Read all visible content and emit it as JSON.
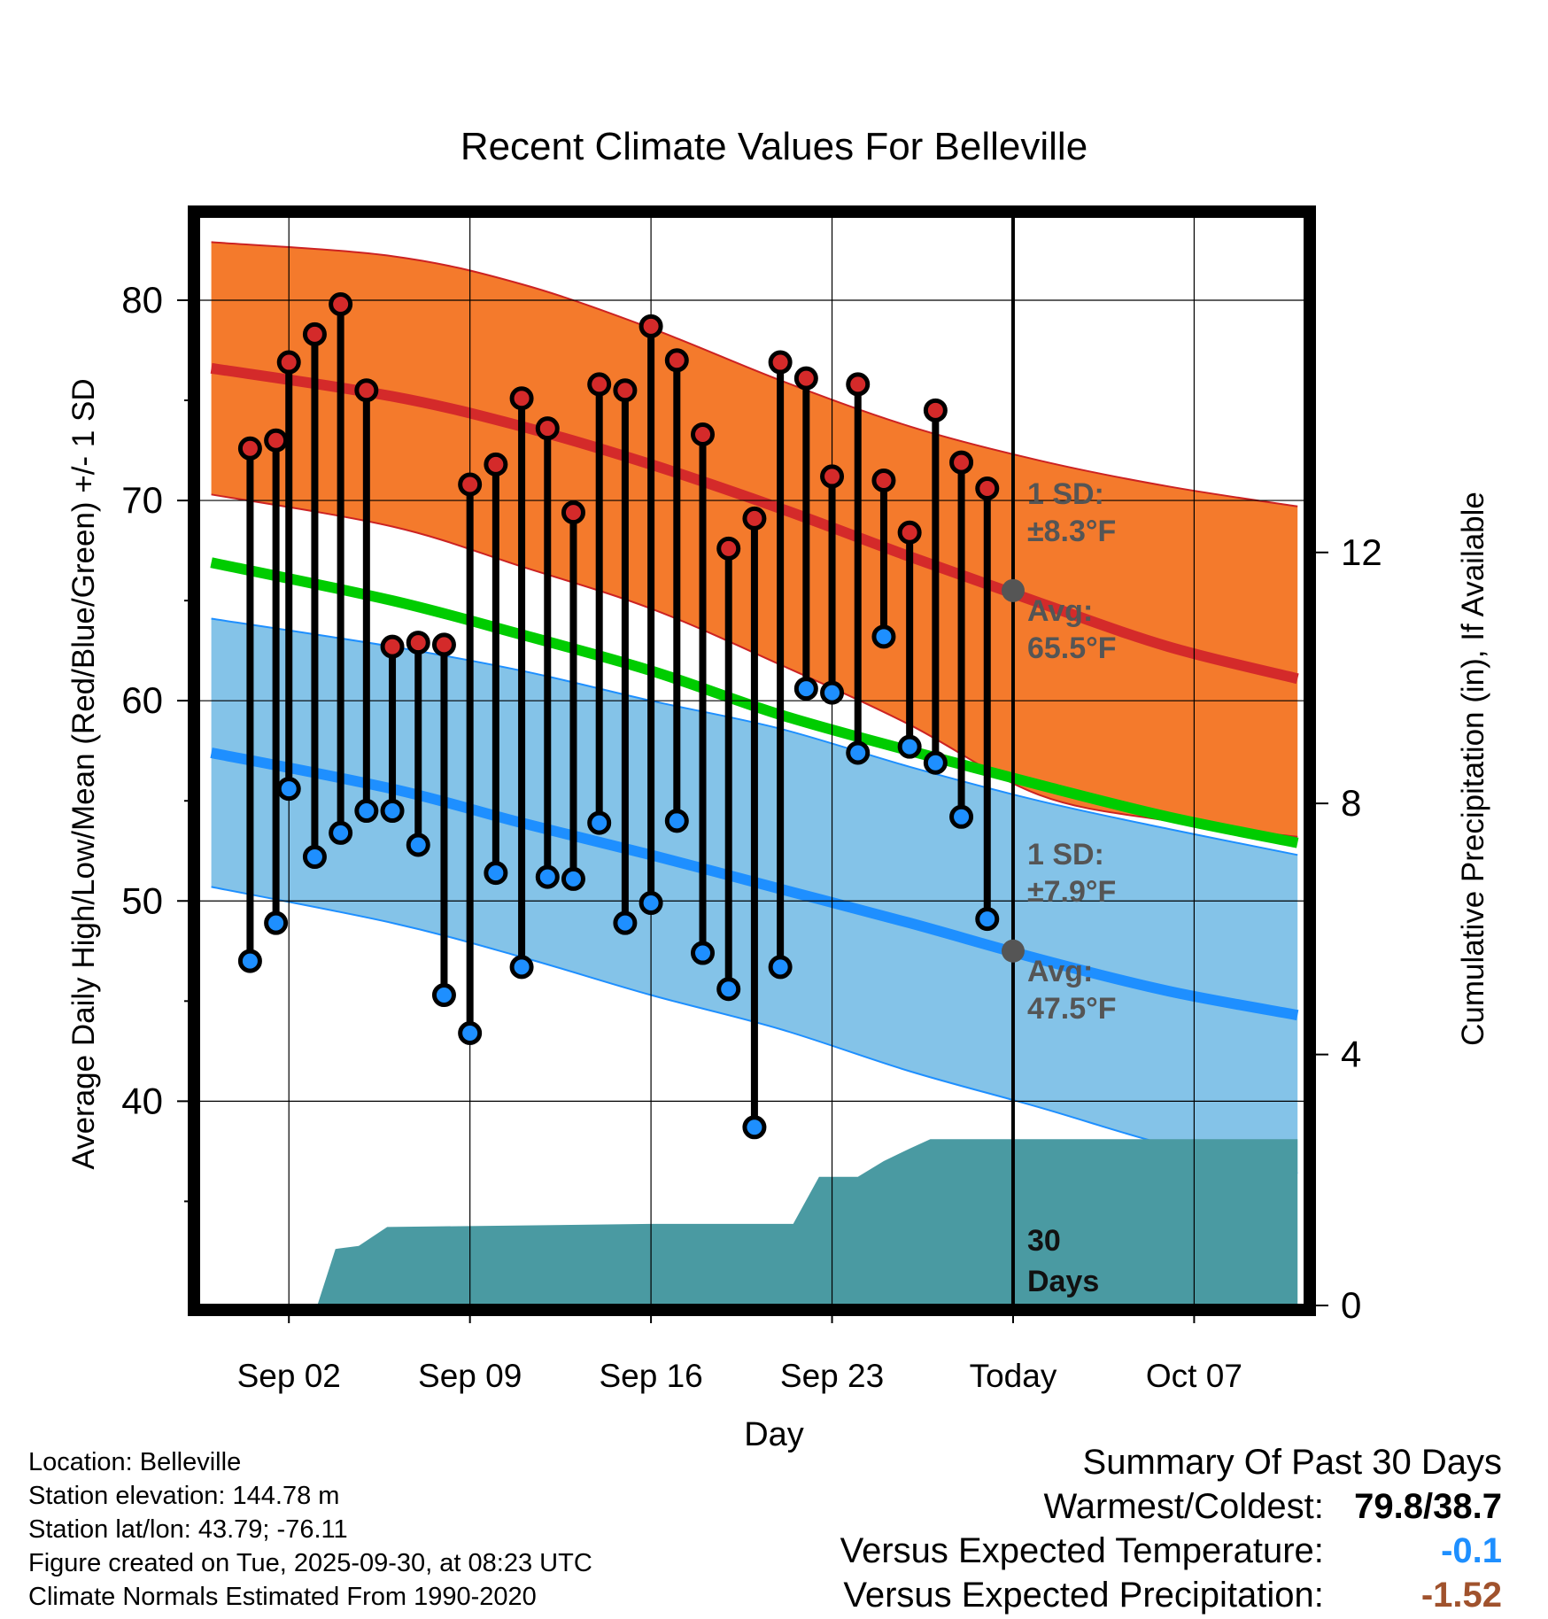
{
  "chart_data": {
    "type": "line",
    "title": "Recent Climate Values For Belleville",
    "xlabel": "Day",
    "ylabel": "Average Daily High/Low/Mean (Red/Blue/Green) +/- 1 SD",
    "y2label": "Cumulative Precipitation (in), If Available",
    "x_range": [
      -2.5,
      40.3
    ],
    "ylim": [
      29.8,
      84.2
    ],
    "y2lim": [
      0,
      17.36
    ],
    "x_ticks": [
      {
        "day": 1,
        "label": "Sep 02"
      },
      {
        "day": 8,
        "label": "Sep 09"
      },
      {
        "day": 15,
        "label": "Sep 16"
      },
      {
        "day": 22,
        "label": "Sep 23"
      },
      {
        "day": 29,
        "label": "Today"
      },
      {
        "day": 36,
        "label": "Oct 07"
      }
    ],
    "y_ticks": [
      40,
      50,
      60,
      70,
      80
    ],
    "y_minor_ticks": [
      35,
      45,
      55,
      65,
      75
    ],
    "y2_ticks": [
      0,
      4,
      8,
      12
    ],
    "normals": {
      "x": [
        -2,
        5,
        10,
        15,
        20,
        25,
        30,
        35,
        40
      ],
      "avg_high": [
        76.6,
        75.2,
        73.7,
        71.8,
        69.6,
        67.2,
        64.9,
        62.7,
        61.1
      ],
      "avg_low": [
        57.4,
        55.6,
        53.9,
        52.3,
        50.6,
        48.9,
        47.1,
        45.5,
        44.3
      ],
      "avg_mean": [
        66.9,
        65.0,
        63.3,
        61.5,
        59.3,
        57.5,
        55.8,
        54.2,
        52.9
      ],
      "high_sd_upper": [
        82.9,
        82.2,
        80.8,
        78.6,
        76.0,
        73.7,
        72.0,
        70.7,
        69.7
      ],
      "high_sd_lower": [
        70.3,
        68.7,
        66.7,
        64.6,
        61.8,
        58.8,
        55.3,
        54.0,
        53.2
      ],
      "low_sd_upper": [
        64.1,
        62.7,
        61.5,
        60.0,
        58.6,
        56.7,
        55.0,
        53.6,
        52.3
      ],
      "low_sd_lower": [
        50.7,
        48.9,
        47.2,
        45.3,
        43.6,
        41.5,
        39.7,
        37.8,
        36.4
      ]
    },
    "observed": {
      "x": [
        -0.5,
        0.5,
        1,
        2,
        3,
        4,
        5,
        6,
        7,
        8,
        9,
        10,
        11,
        12,
        13,
        14,
        15,
        16,
        17,
        18,
        19,
        20,
        21,
        22,
        23,
        24,
        25,
        26,
        27,
        28
      ],
      "high": [
        72.6,
        73.0,
        76.9,
        78.3,
        79.8,
        75.5,
        62.7,
        62.9,
        62.8,
        70.8,
        71.8,
        75.1,
        73.6,
        69.4,
        75.8,
        75.5,
        78.7,
        77.0,
        73.3,
        67.6,
        69.1,
        76.9,
        76.1,
        71.2,
        75.8,
        71.0,
        68.4,
        74.5,
        71.9,
        70.6
      ],
      "low": [
        47.0,
        48.9,
        55.6,
        52.2,
        53.4,
        54.5,
        54.5,
        52.8,
        45.3,
        43.4,
        51.4,
        46.7,
        51.2,
        51.1,
        53.9,
        48.9,
        49.9,
        54.0,
        47.4,
        45.6,
        38.7,
        46.7,
        60.6,
        60.4,
        57.4,
        63.2,
        57.7,
        56.9,
        54.2,
        49.1
      ]
    },
    "precipitation_cumulative": {
      "x": [
        1.3,
        2.1,
        2.8,
        3.7,
        4.8,
        15,
        20.5,
        21.5,
        22,
        23,
        24,
        25,
        25.8,
        40
      ],
      "values": [
        0,
        0,
        0.9,
        0.95,
        1.25,
        1.3,
        1.3,
        2.05,
        2.05,
        2.05,
        2.3,
        2.5,
        2.65,
        2.65
      ]
    },
    "annotations": {
      "high_sd": "1 SD:",
      "high_sd_value": "±8.3°F",
      "high_avg_label": "Avg:",
      "high_avg_value": "65.5°F",
      "low_sd": "1 SD:",
      "low_sd_value": "±7.9°F",
      "low_avg_label": "Avg:",
      "low_avg_value": "47.5°F",
      "period_label": "30",
      "period_unit": "Days"
    },
    "today_marker": {
      "day": 29,
      "avg_high": 65.5,
      "avg_low": 47.5
    },
    "colors": {
      "high": "#d42a2a",
      "high_band": "#f47a2c",
      "high_band_edge": "#cc2222",
      "low": "#1e8fff",
      "low_band": "#84c3e8",
      "mean": "#00cc00",
      "precip": "#4a9aa2",
      "marker": "#555555",
      "annotation": "#555555"
    }
  },
  "info": {
    "location": "Location: Belleville",
    "elevation": "Station elevation: 144.78 m",
    "latlon": "Station lat/lon: 43.79; -76.11",
    "created": "Figure created on Tue, 2025-09-30, at 08:23 UTC",
    "normals": "Climate Normals Estimated From 1990-2020"
  },
  "summary": {
    "title": "Summary Of Past 30 Days",
    "warmest_label": "Warmest/Coldest:",
    "warmest_value": "79.8/38.7",
    "temp_label": "Versus Expected Temperature:",
    "temp_value": "-0.1",
    "temp_color": "#1e8fff",
    "precip_label": "Versus Expected Precipitation:",
    "precip_value": "-1.52",
    "precip_color": "#a0522d"
  }
}
